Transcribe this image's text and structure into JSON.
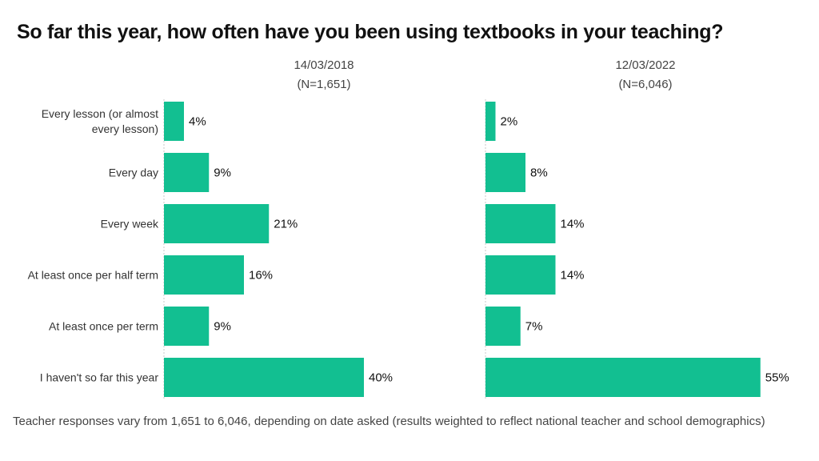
{
  "title": "So far this year, how often have you been using textbooks in your teaching?",
  "footnote": "Teacher responses vary from 1,651 to 6,046, depending on date asked (results weighted to reflect national teacher and school demographics)",
  "colors": {
    "bar": "#12bf91",
    "axis": "#c8c8c8"
  },
  "chart_data": {
    "type": "bar",
    "orientation": "horizontal",
    "categories": [
      "Every lesson (or almost every lesson)",
      "Every day",
      "Every week",
      "At least once per half term",
      "At least once per term",
      "I haven't so far this year"
    ],
    "series": [
      {
        "date": "14/03/2018",
        "n": "(N=1,651)",
        "values": [
          4,
          9,
          21,
          16,
          9,
          40
        ],
        "labels": [
          "4%",
          "9%",
          "21%",
          "16%",
          "9%",
          "40%"
        ]
      },
      {
        "date": "12/03/2022",
        "n": "(N=6,046)",
        "values": [
          2,
          8,
          14,
          14,
          7,
          55
        ],
        "labels": [
          "2%",
          "8%",
          "14%",
          "14%",
          "7%",
          "55%"
        ]
      }
    ],
    "xlim": [
      0,
      55
    ]
  }
}
